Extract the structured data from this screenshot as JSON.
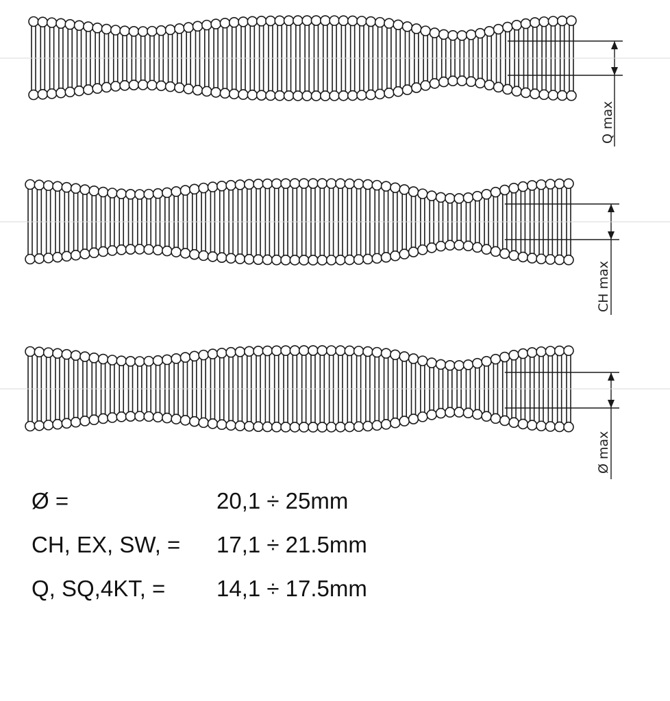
{
  "springs": [
    {
      "dimension_label": "Q max",
      "waist": "right"
    },
    {
      "dimension_label": "CH max",
      "waist": "right"
    },
    {
      "dimension_label": "Ø max",
      "waist": "right"
    }
  ],
  "specs": [
    {
      "label": "Ø =",
      "value": "20,1 ÷ 25mm"
    },
    {
      "label": "CH, EX, SW,  =",
      "value": "17,1 ÷ 21.5mm"
    },
    {
      "label": "Q, SQ,4KT,  =",
      "value": "14,1 ÷ 17.5mm"
    }
  ]
}
